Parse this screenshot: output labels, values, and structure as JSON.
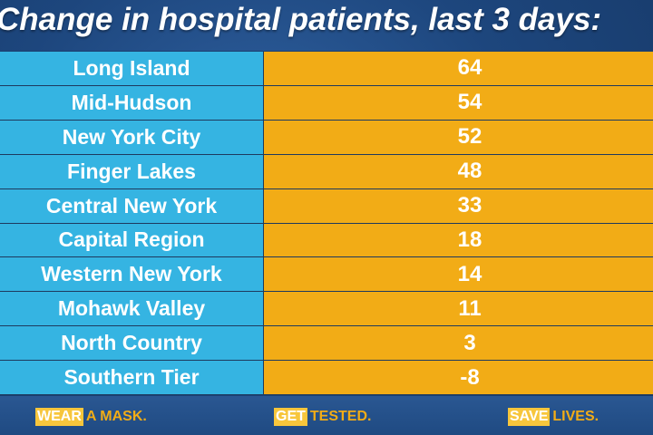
{
  "title": "Change in hospital patients, last 3 days:",
  "rows": [
    {
      "region": "Long Island",
      "value": "64"
    },
    {
      "region": "Mid-Hudson",
      "value": "54"
    },
    {
      "region": "New York City",
      "value": "52"
    },
    {
      "region": "Finger Lakes",
      "value": "48"
    },
    {
      "region": "Central New York",
      "value": "33"
    },
    {
      "region": "Capital Region",
      "value": "18"
    },
    {
      "region": "Western New York",
      "value": "14"
    },
    {
      "region": "Mohawk Valley",
      "value": "11"
    },
    {
      "region": "North Country",
      "value": "3"
    },
    {
      "region": "Southern Tier",
      "value": "-8"
    }
  ],
  "footer": {
    "slogans": [
      {
        "highlight": "WEAR",
        "rest": "A MASK."
      },
      {
        "highlight": "GET",
        "rest": "TESTED."
      },
      {
        "highlight": "SAVE",
        "rest": "LIVES."
      }
    ]
  },
  "colors": {
    "background": "#1d467d",
    "region_cell": "#35b4e2",
    "value_cell": "#f2ac16",
    "slogan_text": "#f2ac16",
    "slogan_highlight": "#f7c63c"
  }
}
